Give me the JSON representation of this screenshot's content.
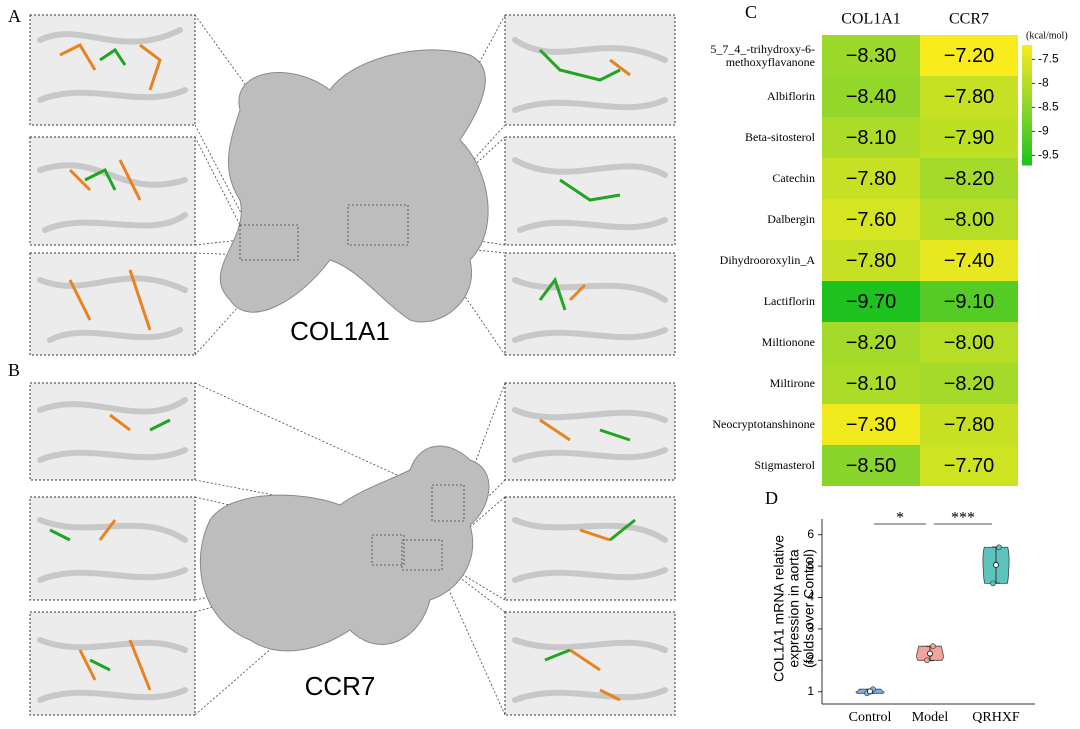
{
  "panel_labels": [
    "A",
    "B",
    "C",
    "D"
  ],
  "structure_labels": [
    "COL1A1",
    "CCR7"
  ],
  "chart_data": [
    {
      "type": "heatmap",
      "columns": [
        "COL1A1",
        "CCR7"
      ],
      "rows": [
        "5_7_4_-trihydroxy-6-methoxyflavanone",
        "Albiflorin",
        "Beta-sitosterol",
        "Catechin",
        "Dalbergin",
        "Dihydrooroxylin_A",
        "Lactiflorin",
        "Miltionone",
        "Miltirone",
        "Neocryptotanshinone",
        "Stigmasterol"
      ],
      "values": [
        [
          -8.3,
          -7.2
        ],
        [
          -8.4,
          -7.8
        ],
        [
          -8.1,
          -7.9
        ],
        [
          -7.8,
          -8.2
        ],
        [
          -7.6,
          -8.0
        ],
        [
          -7.8,
          -7.4
        ],
        [
          -9.7,
          -9.1
        ],
        [
          -8.2,
          -8.0
        ],
        [
          -8.1,
          -8.2
        ],
        [
          -7.3,
          -7.8
        ],
        [
          -8.5,
          -7.7
        ]
      ],
      "value_labels": [
        [
          "−8.30",
          "−7.20"
        ],
        [
          "−8.40",
          "−7.80"
        ],
        [
          "−8.10",
          "−7.90"
        ],
        [
          "−7.80",
          "−8.20"
        ],
        [
          "−7.60",
          "−8.00"
        ],
        [
          "−7.80",
          "−7.40"
        ],
        [
          "−9.70",
          "−9.10"
        ],
        [
          "−8.20",
          "−8.00"
        ],
        [
          "−8.10",
          "−8.20"
        ],
        [
          "−7.30",
          "−7.80"
        ],
        [
          "−8.50",
          "−7.70"
        ]
      ],
      "colorbar_label": "(kcal/mol)",
      "zlim": [
        -9.7,
        -7.2
      ],
      "colorscale": [
        "#1ec21e",
        "#8fd62c",
        "#f8ec1c"
      ],
      "zticks": [
        {
          "value": -7.5,
          "label": "-7.5"
        },
        {
          "value": -8,
          "label": "-8"
        },
        {
          "value": -8.5,
          "label": "-8.5"
        },
        {
          "value": -9,
          "label": "-9"
        },
        {
          "value": -9.5,
          "label": "-9.5"
        }
      ]
    },
    {
      "type": "violin",
      "ylabel": [
        "COL1A1 mRNA relative",
        "expression in aorta",
        "(folds over Control)"
      ],
      "categories": [
        "Control",
        "Model",
        "QRHXF"
      ],
      "series": [
        {
          "name": "Control",
          "color": "#7ab2e8",
          "values": [
            0.95,
            1.0,
            1.08
          ]
        },
        {
          "name": "Model",
          "color": "#f3a39a",
          "values": [
            2.0,
            2.2,
            2.45
          ]
        },
        {
          "name": "QRHXF",
          "color": "#5cc4bd",
          "values": [
            4.45,
            5.05,
            5.6
          ]
        }
      ],
      "ylim": [
        0.8,
        6.5
      ],
      "yticks": [
        1,
        2,
        3,
        4,
        5,
        6
      ],
      "annotations": [
        {
          "text": "*",
          "between": [
            "Control",
            "Model"
          ]
        },
        {
          "text": "***",
          "between": [
            "Model",
            "QRHXF"
          ]
        }
      ]
    }
  ]
}
